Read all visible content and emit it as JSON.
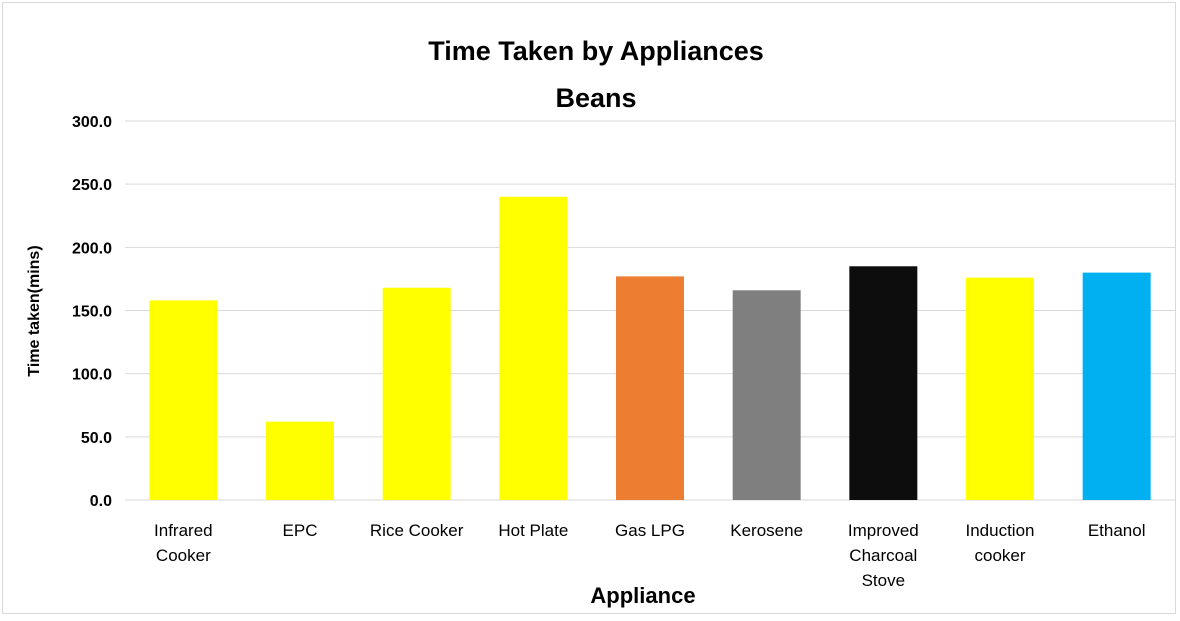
{
  "chart_data": {
    "type": "bar",
    "title": "Time Taken by Appliances",
    "subtitle": "Beans",
    "xlabel": "Appliance",
    "ylabel": "Time taken(mins)",
    "ylim": [
      0,
      300
    ],
    "yticks": [
      0,
      50,
      100,
      150,
      200,
      250,
      300
    ],
    "ytick_labels": [
      "0.0",
      "50.0",
      "100.0",
      "150.0",
      "200.0",
      "250.0",
      "300.0"
    ],
    "grid": true,
    "legend": "none",
    "categories": [
      "Infrared Cooker",
      "EPC",
      "Rice Cooker",
      "Hot Plate",
      "Gas LPG",
      "Kerosene",
      "Improved Charcoal Stove",
      "Induction cooker",
      "Ethanol"
    ],
    "category_label_lines": [
      [
        "Infrared",
        "Cooker"
      ],
      [
        "EPC"
      ],
      [
        "Rice Cooker"
      ],
      [
        "Hot Plate"
      ],
      [
        "Gas LPG"
      ],
      [
        "Kerosene"
      ],
      [
        "Improved",
        "Charcoal",
        "Stove"
      ],
      [
        "Induction",
        "cooker"
      ],
      [
        "Ethanol"
      ]
    ],
    "values": [
      158,
      62,
      168,
      240,
      177,
      166,
      185,
      176,
      180
    ],
    "colors": [
      "#ffff00",
      "#ffff00",
      "#ffff00",
      "#ffff00",
      "#ed7d31",
      "#7f7f7f",
      "#0d0d0d",
      "#ffff00",
      "#00b0f0"
    ]
  }
}
